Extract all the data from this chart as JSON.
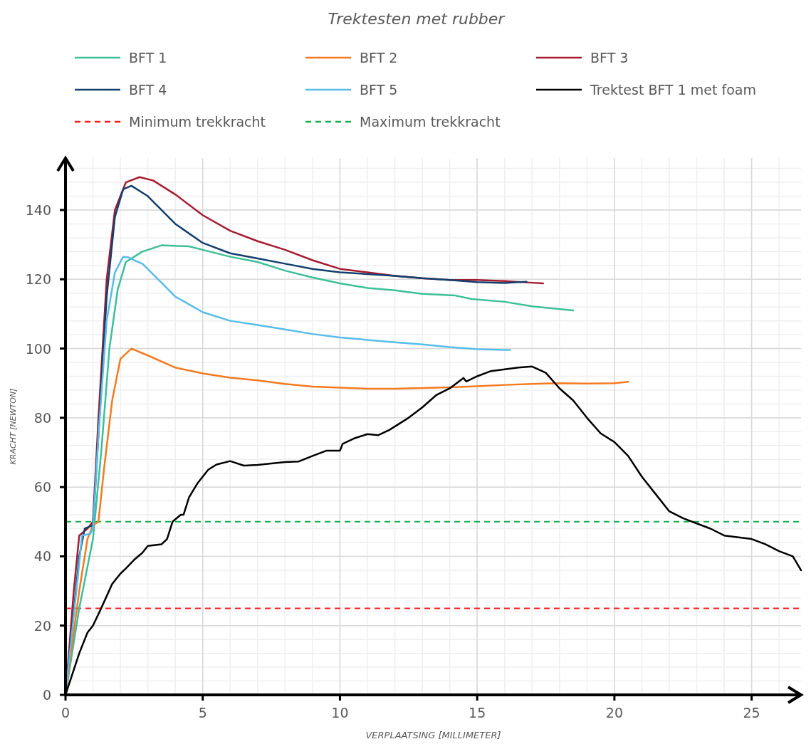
{
  "chart_data": {
    "type": "line",
    "title": "Trektesten met rubber",
    "xlabel": "VERPLAATSING [MILLIMETER]",
    "ylabel": "KRACHT [NEWTON]",
    "xlim": [
      0,
      26.8
    ],
    "ylim": [
      0,
      155
    ],
    "xticks": [
      0,
      5,
      10,
      15,
      20,
      25
    ],
    "yticks": [
      0,
      20,
      40,
      60,
      80,
      100,
      120,
      140
    ],
    "grid": true,
    "legend": "top",
    "line_style": "solid",
    "marker": "none",
    "series": [
      {
        "name": "BFT 1",
        "color": "#3dbf98",
        "x": [
          0,
          0.5,
          1,
          1.3,
          1.6,
          1.9,
          2.2,
          2.8,
          3.5,
          4.5,
          5,
          6,
          7,
          8,
          9,
          10,
          11,
          12,
          13,
          14.2,
          14.8,
          16,
          17,
          18.5
        ],
        "values": [
          0,
          25,
          45,
          70,
          100,
          117,
          125,
          128,
          129.8,
          129.5,
          128.5,
          126.5,
          125,
          122.5,
          120.5,
          118.8,
          117.5,
          116.8,
          115.8,
          115.3,
          114.3,
          113.5,
          112.2,
          111
        ]
      },
      {
        "name": "BFT 2",
        "color": "#f47a20",
        "x": [
          0,
          0.5,
          0.8,
          1,
          1.2,
          1.4,
          1.7,
          2,
          2.4,
          3,
          4,
          5,
          6,
          7,
          8,
          9,
          10,
          11,
          12,
          13,
          14,
          15,
          16,
          17,
          18,
          19,
          20,
          20.5
        ],
        "values": [
          0,
          30,
          45,
          49,
          50,
          65,
          85,
          97,
          100,
          98,
          94.5,
          92.8,
          91.6,
          90.8,
          89.8,
          89,
          88.7,
          88.4,
          88.4,
          88.6,
          88.8,
          89.1,
          89.5,
          89.8,
          90,
          89.9,
          90,
          90.4
        ]
      },
      {
        "name": "BFT 3",
        "color": "#a51c30",
        "x": [
          0,
          0.3,
          0.5,
          0.8,
          1,
          1.2,
          1.5,
          1.8,
          2.2,
          2.7,
          3.2,
          4,
          5,
          6,
          7,
          8,
          9,
          10,
          11,
          12,
          13,
          14,
          15,
          16,
          17,
          17.4
        ],
        "values": [
          0,
          30,
          46,
          48,
          50,
          80,
          120,
          140,
          148,
          149.5,
          148.5,
          144.5,
          138.5,
          134,
          131,
          128.5,
          125.5,
          123,
          122,
          121,
          120.3,
          119.8,
          119.8,
          119.5,
          119,
          118.8
        ]
      },
      {
        "name": "BFT 4",
        "color": "#123f6e",
        "x": [
          0,
          0.5,
          0.7,
          1,
          1.2,
          1.5,
          1.8,
          2.1,
          2.4,
          3,
          4,
          5,
          6,
          7,
          8,
          9,
          10,
          11,
          12,
          13,
          14,
          15,
          16,
          16.5,
          16.8
        ],
        "values": [
          0,
          40,
          48,
          49,
          75,
          115,
          138,
          146,
          147,
          144,
          136,
          130.5,
          127.5,
          126,
          124.5,
          123,
          122,
          121.5,
          121,
          120.3,
          119.8,
          119.2,
          118.9,
          119.2,
          119.3
        ]
      },
      {
        "name": "BFT 5",
        "color": "#56bde9",
        "x": [
          0,
          0.5,
          0.6,
          0.9,
          1,
          1.2,
          1.5,
          1.8,
          2.1,
          2.3,
          2.5,
          2.8,
          3.5,
          4,
          5,
          6,
          7,
          8,
          9,
          10,
          11,
          12,
          13,
          14,
          15,
          16,
          16.2
        ],
        "values": [
          0,
          38,
          46,
          46.5,
          48,
          75,
          108,
          122,
          126.5,
          126.3,
          125.5,
          124.5,
          119,
          115,
          110.5,
          108,
          106.8,
          105.5,
          104.2,
          103.2,
          102.5,
          101.8,
          101.2,
          100.4,
          99.8,
          99.6,
          99.6
        ]
      },
      {
        "name": "Trektest BFT 1 met foam",
        "color": "#000000",
        "x": [
          0,
          0.5,
          0.8,
          1,
          1.3,
          1.7,
          2,
          2.2,
          2.5,
          2.8,
          3,
          3.5,
          3.7,
          3.9,
          4.2,
          4.3,
          4.5,
          4.8,
          5.2,
          5.5,
          6,
          6.5,
          7,
          7.5,
          8,
          8.5,
          9,
          9.5,
          10,
          10.1,
          10.5,
          11,
          11.4,
          11.8,
          12.5,
          13,
          13.5,
          14,
          14.5,
          14.6,
          15,
          15.5,
          16,
          16.5,
          17,
          17.5,
          18,
          18.5,
          19,
          19.5,
          20,
          20.5,
          21,
          21.5,
          22,
          22.5,
          23,
          23.5,
          24,
          25,
          25.5,
          26,
          26.5,
          26.8
        ],
        "values": [
          0,
          12,
          18,
          20,
          25,
          32,
          35,
          36.5,
          39,
          41,
          43,
          43.5,
          45,
          50,
          52,
          52,
          57,
          61,
          65,
          66.5,
          67.5,
          66.2,
          66.4,
          66.8,
          67.2,
          67.4,
          69,
          70.5,
          70.5,
          72.5,
          74,
          75.3,
          75,
          76.5,
          80,
          83,
          86.5,
          88.5,
          91.5,
          90.5,
          92,
          93.5,
          94,
          94.5,
          94.8,
          93,
          88.5,
          85,
          80,
          75.5,
          73,
          69,
          63,
          58,
          53,
          51,
          49.5,
          48,
          46,
          45,
          43.5,
          41.5,
          40,
          36
        ]
      }
    ],
    "ref_lines": [
      {
        "axis": "y",
        "value": 25,
        "label": "Minimum trekkracht",
        "color": "#ff1a1a",
        "line_style": "dashed"
      },
      {
        "axis": "y",
        "value": 50,
        "label": "Maximum trekkracht",
        "color": "#10b050",
        "line_style": "dashed"
      }
    ]
  }
}
